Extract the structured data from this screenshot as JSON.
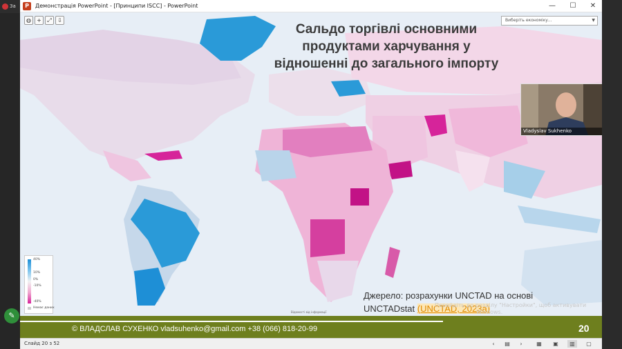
{
  "outer": {
    "tab_text": "За"
  },
  "window": {
    "title": "Демонстрація PowerPoint - [Принципи ISCC] - PowerPoint",
    "logo_letter": "P",
    "minimize_icon": "—",
    "maximize_icon": "☐",
    "close_icon": "✕"
  },
  "map": {
    "select_placeholder": "Виберіть економіку...",
    "credit": "Відомості від інформації",
    "legend": {
      "max": "40%",
      "mid1": "10%",
      "zero": "0%",
      "mid2": "-10%",
      "min": "-40%",
      "nodata": "Немає даних"
    },
    "colors": {
      "positive": "#1e8fd6",
      "negative": "#d6249a",
      "nodata": "#cccccc"
    }
  },
  "slide": {
    "title_line1": "Сальдо торгівлі основними",
    "title_line2": "продуктами харчування у",
    "title_line3": "відношенні до загального імпорту",
    "source_line1": "Джерело: розрахунки UNCTAD на основі",
    "source_line2_prefix": "UNCTADstat ",
    "source_link": "(UNCTAD, 2023а)",
    "activation_line1": "Перейдіть до розділу \"Настройки\", щоб активувати",
    "activation_line2": "Windows.",
    "footer_text": "© ВЛАДСЛАВ СУХЕНКО   vladsuhenko@gmail.com   +38 (066) 818-20-99",
    "slide_number": "20"
  },
  "webcam": {
    "name": "Vladyslav Sukhenko"
  },
  "statusbar": {
    "text": "Слайд 20 з 52",
    "prev_icon": "‹",
    "notes_icon": "▤",
    "next_icon": "›",
    "view1_icon": "▦",
    "view2_icon": "▣",
    "view3_icon": "▥",
    "view4_icon": "▢"
  }
}
